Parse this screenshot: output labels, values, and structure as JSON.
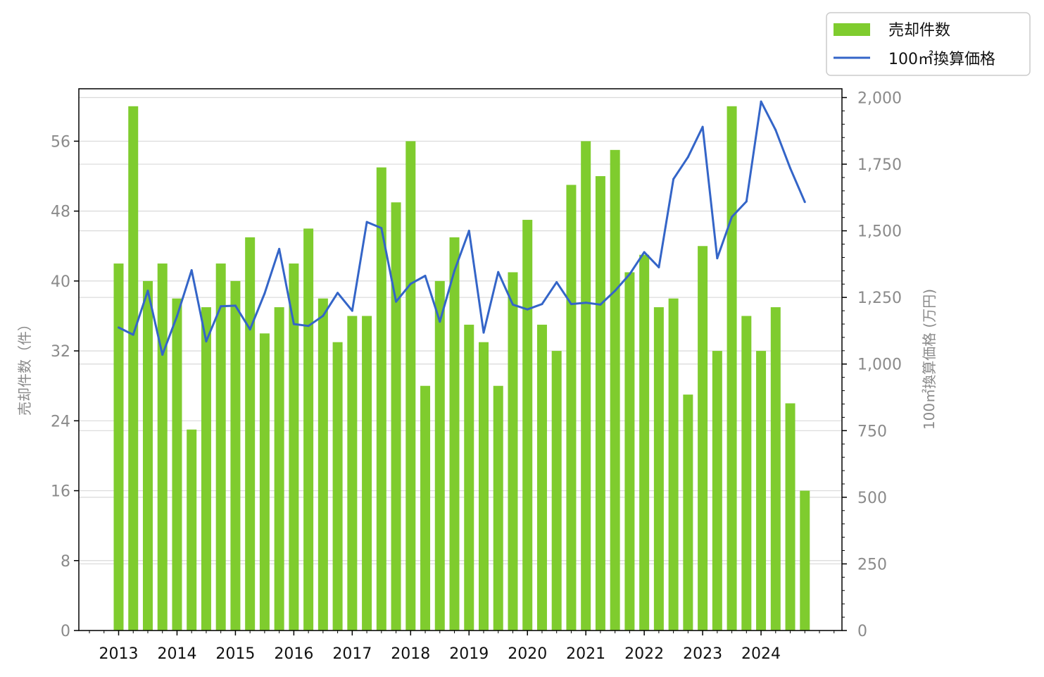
{
  "chart_data": {
    "type": "bar",
    "x_tick_labels": [
      "2013",
      "2014",
      "2015",
      "2016",
      "2017",
      "2018",
      "2019",
      "2020",
      "2021",
      "2022",
      "2023",
      "2024"
    ],
    "series": [
      {
        "name": "売却件数",
        "type": "bar",
        "axis": "left",
        "color": "#7fcc2e",
        "values": [
          42,
          60,
          40,
          42,
          38,
          23,
          37,
          42,
          40,
          45,
          34,
          37,
          42,
          46,
          38,
          33,
          36,
          36,
          53,
          49,
          56,
          28,
          40,
          45,
          35,
          33,
          28,
          41,
          47,
          35,
          32,
          51,
          56,
          52,
          55,
          41,
          43,
          37,
          38,
          27,
          44,
          32,
          60,
          36,
          32,
          37,
          26,
          16
        ]
      },
      {
        "name": "100㎡換算価格",
        "type": "line",
        "axis": "right",
        "color": "#3465c8",
        "values": [
          1137,
          1110,
          1275,
          1035,
          1180,
          1352,
          1085,
          1217,
          1219,
          1130,
          1265,
          1432,
          1150,
          1143,
          1181,
          1267,
          1200,
          1533,
          1510,
          1234,
          1301,
          1331,
          1159,
          1350,
          1500,
          1118,
          1345,
          1223,
          1205,
          1225,
          1307,
          1225,
          1230,
          1223,
          1275,
          1337,
          1420,
          1363,
          1694,
          1777,
          1890,
          1397,
          1552,
          1610,
          1985,
          1878,
          1735,
          1608
        ]
      }
    ],
    "left_axis": {
      "label": "売却件数（件）",
      "ylim": [
        0,
        62
      ],
      "ticks": [
        "0",
        "8",
        "16",
        "24",
        "32",
        "40",
        "48",
        "56"
      ]
    },
    "right_axis": {
      "label": "100㎡換算価格 (万円)",
      "ylim": [
        0,
        2033
      ],
      "ticks": [
        "0",
        "250",
        "500",
        "750",
        "1,000",
        "1,250",
        "1,500",
        "1,750",
        "2,000"
      ]
    },
    "grid": "horizontal",
    "legend_placement": "top-right, outside plot"
  }
}
